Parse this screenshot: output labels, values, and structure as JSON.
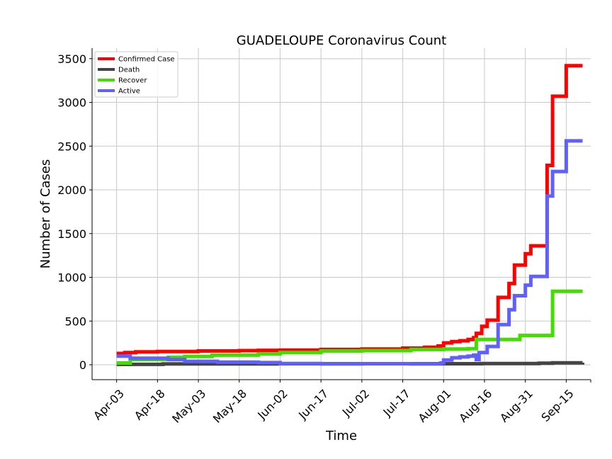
{
  "chart_data": {
    "type": "line",
    "title": "GUADELOUPE Coronavirus Count",
    "xlabel": "Time",
    "ylabel": "Number of Cases",
    "x_tick_labels": [
      "Apr-03",
      "Apr-18",
      "May-03",
      "May-18",
      "Jun-02",
      "Jun-17",
      "Jul-02",
      "Jul-17",
      "Aug-01",
      "Aug-16",
      "Aug-31",
      "Sep-15"
    ],
    "y_tick_labels": [
      "0",
      "500",
      "1000",
      "1500",
      "2000",
      "2500",
      "3000",
      "3500"
    ],
    "ylim": [
      -170,
      3620
    ],
    "xlim": [
      "2020-03-25",
      "2020-09-24"
    ],
    "grid": true,
    "legend_position": "top-left",
    "series": [
      {
        "name": "Confirmed Case",
        "color": "#ff0000",
        "points": [
          [
            "2020-04-03",
            130
          ],
          [
            "2020-04-06",
            140
          ],
          [
            "2020-04-10",
            148
          ],
          [
            "2020-04-18",
            152
          ],
          [
            "2020-05-03",
            158
          ],
          [
            "2020-05-18",
            162
          ],
          [
            "2020-05-25",
            165
          ],
          [
            "2020-06-02",
            168
          ],
          [
            "2020-06-17",
            175
          ],
          [
            "2020-07-02",
            180
          ],
          [
            "2020-07-17",
            190
          ],
          [
            "2020-07-25",
            200
          ],
          [
            "2020-07-30",
            215
          ],
          [
            "2020-08-01",
            250
          ],
          [
            "2020-08-04",
            265
          ],
          [
            "2020-08-07",
            275
          ],
          [
            "2020-08-10",
            290
          ],
          [
            "2020-08-12",
            310
          ],
          [
            "2020-08-13",
            360
          ],
          [
            "2020-08-15",
            440
          ],
          [
            "2020-08-17",
            510
          ],
          [
            "2020-08-21",
            770
          ],
          [
            "2020-08-25",
            930
          ],
          [
            "2020-08-27",
            1140
          ],
          [
            "2020-08-31",
            1270
          ],
          [
            "2020-09-02",
            1360
          ],
          [
            "2020-09-08",
            2280
          ],
          [
            "2020-09-10",
            3070
          ],
          [
            "2020-09-15",
            3420
          ],
          [
            "2020-09-21",
            3420
          ]
        ]
      },
      {
        "name": "Death",
        "color": "#444444",
        "points": [
          [
            "2020-04-03",
            5
          ],
          [
            "2020-04-20",
            10
          ],
          [
            "2020-06-01",
            12
          ],
          [
            "2020-08-15",
            14
          ],
          [
            "2020-09-05",
            18
          ],
          [
            "2020-09-10",
            22
          ],
          [
            "2020-09-21",
            24
          ]
        ]
      },
      {
        "name": "Recover",
        "color": "#44dd00",
        "points": [
          [
            "2020-04-03",
            20
          ],
          [
            "2020-04-08",
            60
          ],
          [
            "2020-04-22",
            85
          ],
          [
            "2020-04-28",
            95
          ],
          [
            "2020-05-08",
            110
          ],
          [
            "2020-05-25",
            125
          ],
          [
            "2020-06-02",
            140
          ],
          [
            "2020-06-17",
            158
          ],
          [
            "2020-07-02",
            162
          ],
          [
            "2020-07-20",
            175
          ],
          [
            "2020-08-01",
            180
          ],
          [
            "2020-08-10",
            185
          ],
          [
            "2020-08-13",
            290
          ],
          [
            "2020-08-29",
            335
          ],
          [
            "2020-09-10",
            840
          ],
          [
            "2020-09-21",
            840
          ]
        ]
      },
      {
        "name": "Active",
        "color": "#6060ff",
        "points": [
          [
            "2020-04-03",
            100
          ],
          [
            "2020-04-08",
            75
          ],
          [
            "2020-04-22",
            60
          ],
          [
            "2020-04-28",
            40
          ],
          [
            "2020-05-10",
            30
          ],
          [
            "2020-05-25",
            25
          ],
          [
            "2020-06-02",
            15
          ],
          [
            "2020-06-17",
            10
          ],
          [
            "2020-07-02",
            12
          ],
          [
            "2020-07-20",
            10
          ],
          [
            "2020-07-31",
            20
          ],
          [
            "2020-08-01",
            55
          ],
          [
            "2020-08-04",
            80
          ],
          [
            "2020-08-07",
            90
          ],
          [
            "2020-08-10",
            100
          ],
          [
            "2020-08-12",
            110
          ],
          [
            "2020-08-13",
            60
          ],
          [
            "2020-08-14",
            140
          ],
          [
            "2020-08-17",
            210
          ],
          [
            "2020-08-21",
            460
          ],
          [
            "2020-08-25",
            630
          ],
          [
            "2020-08-27",
            790
          ],
          [
            "2020-08-31",
            910
          ],
          [
            "2020-09-02",
            1010
          ],
          [
            "2020-09-08",
            1930
          ],
          [
            "2020-09-10",
            2210
          ],
          [
            "2020-09-15",
            2560
          ],
          [
            "2020-09-21",
            2560
          ]
        ]
      }
    ]
  }
}
